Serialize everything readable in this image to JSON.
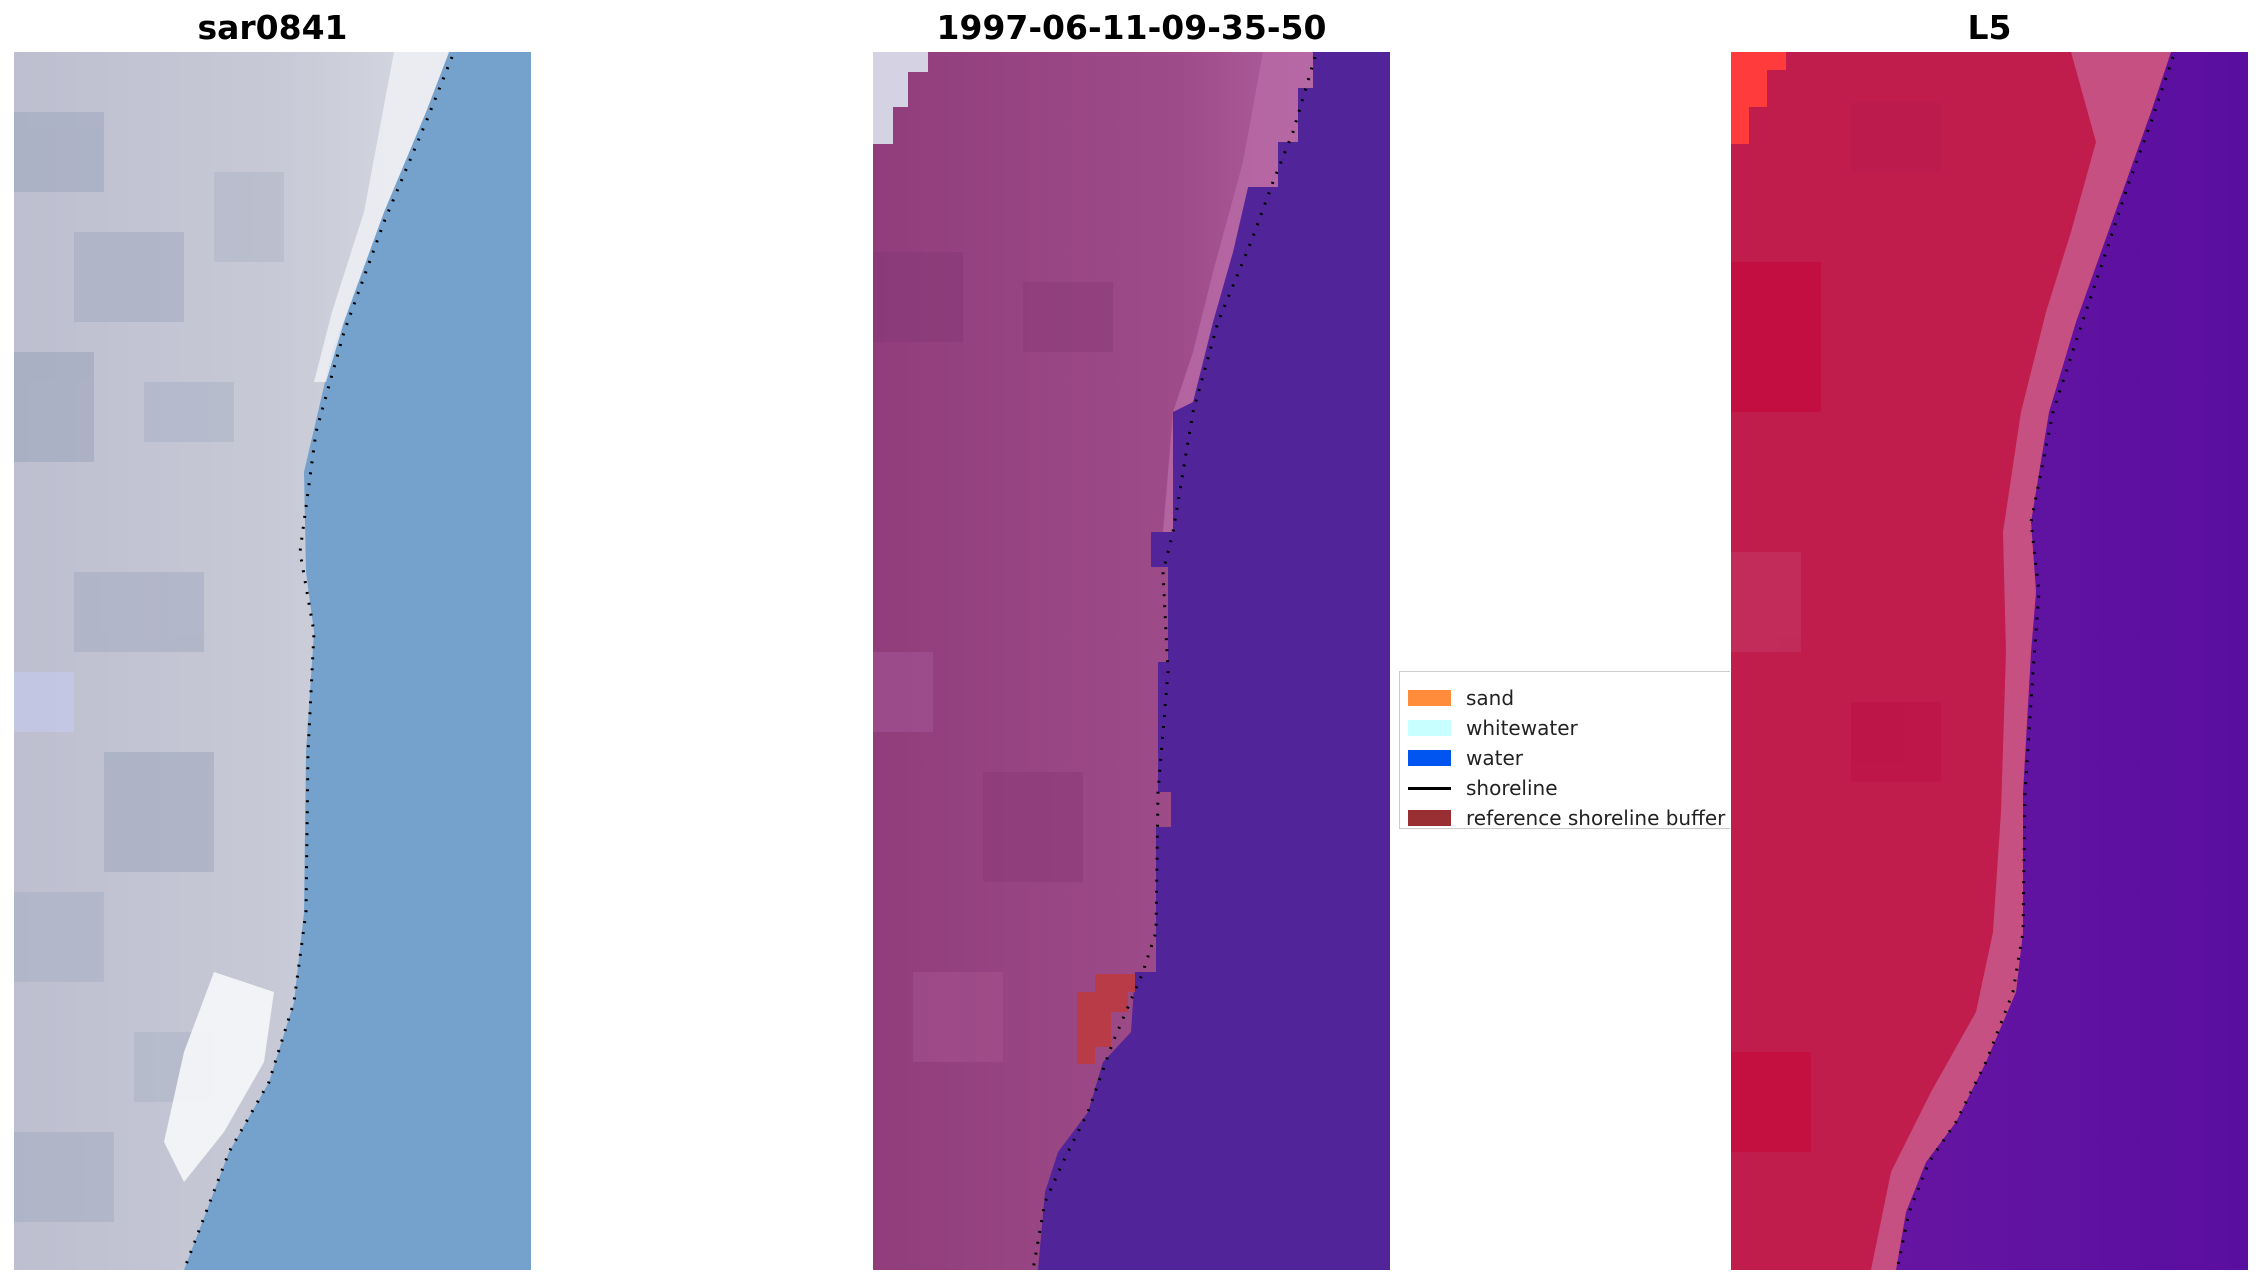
{
  "figure": {
    "panels": [
      {
        "title": "sar0841",
        "image_alt": "true-color satellite image with detected shoreline",
        "colors": {
          "land": "#c4c6d2",
          "land_dark": "#9ea7bb",
          "whitewater": "#eef0f5",
          "water": "#75a2cc"
        }
      },
      {
        "title": "1997-06-11-09-35-50",
        "image_alt": "classified image with detected shoreline",
        "colors": {
          "land": "#9b4a86",
          "land_edge": "#b05f9e",
          "water": "#512599",
          "buffer": "#b83b47",
          "corner": "#d5d2e3"
        }
      },
      {
        "title": "L5",
        "image_alt": "MNDWI image with detected shoreline",
        "colors": {
          "land": "#c01d4c",
          "land_edge": "#c8598d",
          "water": "#5a119c",
          "corner": "#ff3b3b"
        }
      }
    ]
  },
  "legend": {
    "items": [
      {
        "label": "sand",
        "kind": "patch",
        "color": "#ff8c3a"
      },
      {
        "label": "whitewater",
        "kind": "patch",
        "color": "#c8ffff"
      },
      {
        "label": "water",
        "kind": "patch",
        "color": "#0054f0"
      },
      {
        "label": "shoreline",
        "kind": "line",
        "color": "#000000"
      },
      {
        "label": "reference shoreline buffer",
        "kind": "patch",
        "color": "#9a2f33"
      }
    ]
  }
}
